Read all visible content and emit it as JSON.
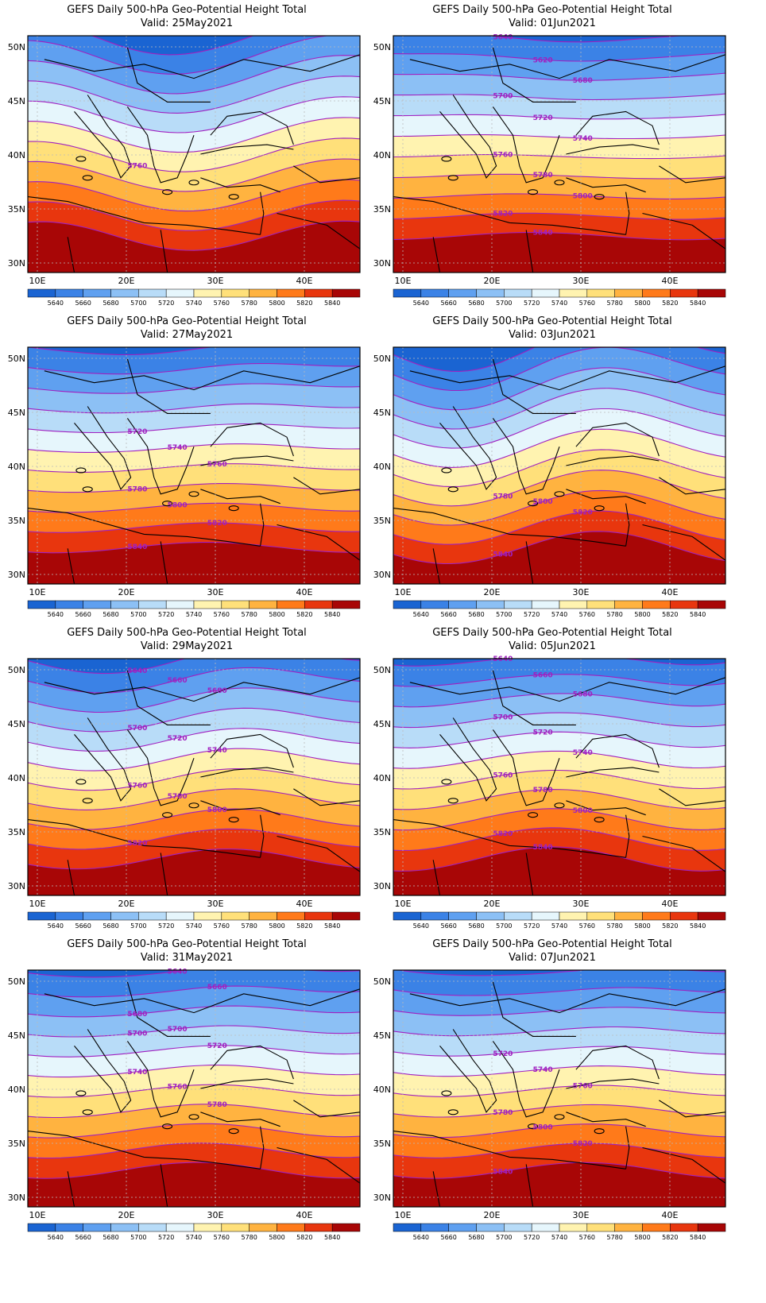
{
  "colorbar": {
    "levels": [
      "5640",
      "5660",
      "5680",
      "5700",
      "5720",
      "5740",
      "5760",
      "5780",
      "5800",
      "5820",
      "5840"
    ],
    "colors": [
      "#1a64d2",
      "#3b82e6",
      "#5fa0f0",
      "#8cc0f5",
      "#b8dcf8",
      "#e6f6fc",
      "#fff3b0",
      "#ffe07a",
      "#ffb340",
      "#ff7a1a",
      "#e8360e",
      "#a80606"
    ]
  },
  "axes": {
    "x_ticks": [
      "10E",
      "20E",
      "30E",
      "40E"
    ],
    "y_ticks": [
      "50N",
      "45N",
      "40N",
      "35N",
      "30N"
    ]
  },
  "panels": [
    {
      "title": "GEFS Daily 500-hPa Geo-Potential Height Total",
      "valid": "Valid: 25May2021",
      "contour_labels": [
        "5760"
      ],
      "shift": -0.6,
      "amp": 0.5,
      "trough": 0.3
    },
    {
      "title": "GEFS Daily 500-hPa Geo-Potential Height Total",
      "valid": "Valid: 01Jun2021",
      "contour_labels": [
        "5640",
        "5620",
        "5680",
        "5700",
        "5720",
        "5740",
        "5760",
        "5780",
        "5800",
        "5820",
        "5840"
      ],
      "shift": 0.55,
      "amp": 0.15,
      "trough": 0.5
    },
    {
      "title": "GEFS Daily 500-hPa Geo-Potential Height Total",
      "valid": "Valid: 27May2021",
      "contour_labels": [
        "5720",
        "5740",
        "5760",
        "5780",
        "5800",
        "5820",
        "5840"
      ],
      "shift": 0.35,
      "amp": 0.2,
      "trough": 0.4
    },
    {
      "title": "GEFS Daily 500-hPa Geo-Potential Height Total",
      "valid": "Valid: 03Jun2021",
      "contour_labels": [
        "5780",
        "5800",
        "5820",
        "5840"
      ],
      "shift": 0.15,
      "amp": 0.55,
      "trough": 0.25
    },
    {
      "title": "GEFS Daily 500-hPa Geo-Potential Height Total",
      "valid": "Valid: 29May2021",
      "contour_labels": [
        "5640",
        "5660",
        "5680",
        "5700",
        "5720",
        "5740",
        "5760",
        "5780",
        "5800",
        "5820"
      ],
      "shift": 0.2,
      "amp": 0.35,
      "trough": 0.35
    },
    {
      "title": "GEFS Daily 500-hPa Geo-Potential Height Total",
      "valid": "Valid: 05Jun2021",
      "contour_labels": [
        "5640",
        "5660",
        "5680",
        "5700",
        "5720",
        "5740",
        "5760",
        "5780",
        "5800",
        "5820",
        "5840"
      ],
      "shift": 0.45,
      "amp": 0.45,
      "trough": 0.45
    },
    {
      "title": "GEFS Daily 500-hPa Geo-Potential Height Total",
      "valid": "Valid: 31May2021",
      "contour_labels": [
        "5700",
        "5640",
        "5660",
        "5680",
        "5700",
        "5720",
        "5740",
        "5760",
        "5780"
      ],
      "shift": 0.4,
      "amp": 0.3,
      "trough": 0.4
    },
    {
      "title": "GEFS Daily 500-hPa Geo-Potential Height Total",
      "valid": "Valid: 07Jun2021",
      "contour_labels": [
        "5720",
        "5740",
        "5760",
        "5780",
        "5800",
        "5820",
        "5840"
      ],
      "shift": 0.25,
      "amp": 0.3,
      "trough": 0.5
    }
  ]
}
